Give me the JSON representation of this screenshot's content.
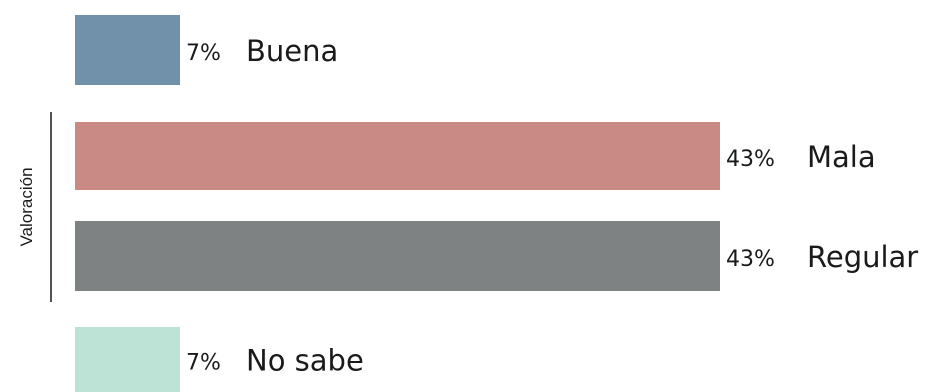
{
  "chart_data": {
    "type": "bar",
    "orientation": "horizontal",
    "ylabel": "Valoración",
    "categories": [
      "Buena",
      "Mala",
      "Regular",
      "No sabe"
    ],
    "values": [
      7,
      43,
      43,
      7
    ],
    "value_labels": [
      "7%",
      "43%",
      "43%",
      "7%"
    ],
    "colors": [
      "#7191aa",
      "#c98a85",
      "#7f8282",
      "#bde3d6"
    ],
    "xlim": [
      0,
      43
    ]
  }
}
